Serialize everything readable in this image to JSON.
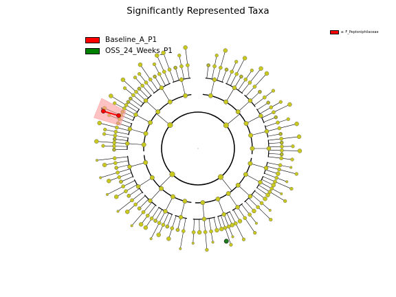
{
  "title": "Significantly Represented Taxa",
  "legend": [
    {
      "label": "Baseline_A_P1",
      "color": "#ff0000"
    },
    {
      "label": "OSS_24_Weeks_P1",
      "color": "#008000"
    }
  ],
  "side_legend": {
    "label": "a: F_Peptoniphilaceae",
    "color": "#ff0000"
  },
  "highlight_label": "a",
  "colors": {
    "node": "#c8c81e",
    "edge": "#000000",
    "highlight_fill": "#ff9999",
    "enriched_a": "#ff0000",
    "enriched_b": "#1e7b1e"
  }
}
